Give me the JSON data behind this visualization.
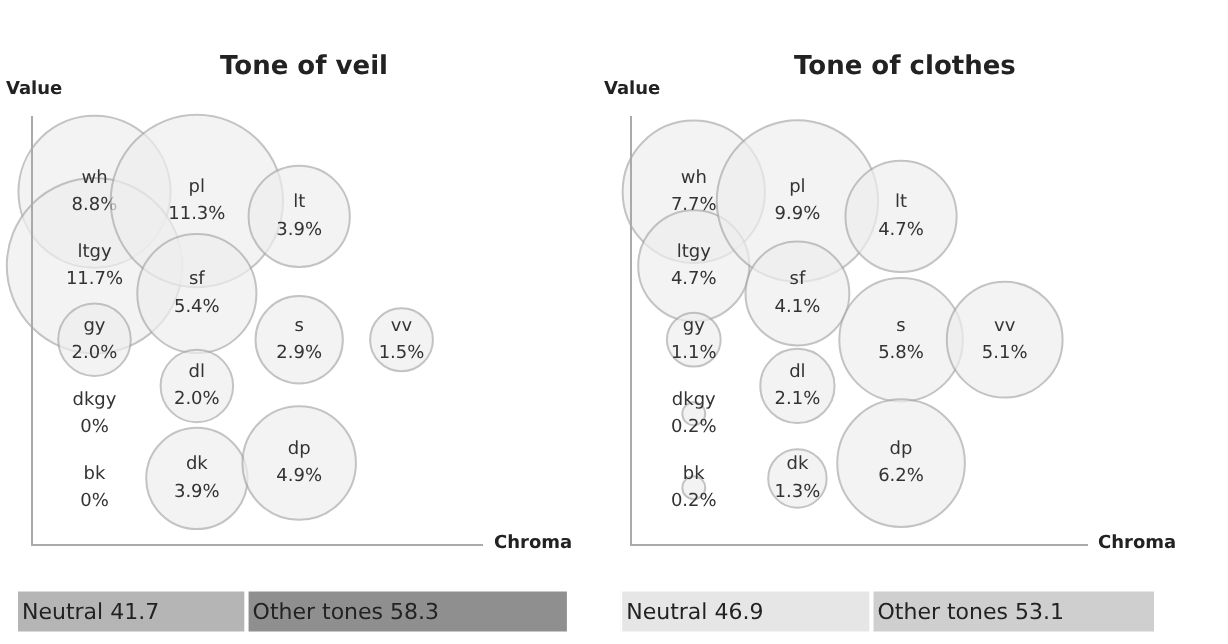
{
  "chart_data": [
    {
      "type": "other",
      "title": "Tone of veil",
      "xlabel": "Chroma",
      "ylabel": "Value",
      "categories": [
        "wh",
        "ltgy",
        "gy",
        "dkgy",
        "bk",
        "pl",
        "sf",
        "dl",
        "dk",
        "lt",
        "s",
        "dp",
        "vv"
      ],
      "series": [
        {
          "color": "#eeeeee",
          "values": [
            8.8,
            11.7,
            2.0,
            0,
            0,
            null,
            null,
            null,
            null,
            null,
            null,
            null,
            null
          ],
          "value_labels": [
            "8.8%",
            "11.7%",
            "2.0%",
            "0%",
            "0%",
            null,
            null,
            null,
            null,
            null,
            null,
            null,
            null
          ]
        },
        {
          "color": "#eeeeee",
          "values": [
            null,
            null,
            null,
            null,
            null,
            11.3,
            5.4,
            2.0,
            3.9,
            null,
            null,
            null,
            null
          ],
          "value_labels": [
            null,
            null,
            null,
            null,
            null,
            "11.3%",
            "5.4%",
            "2.0%",
            "3.9%",
            null,
            null,
            null,
            null
          ]
        },
        {
          "color": "#eeeeee",
          "values": [
            null,
            null,
            null,
            null,
            null,
            null,
            null,
            null,
            null,
            3.9,
            2.9,
            4.9,
            null
          ],
          "value_labels": [
            null,
            null,
            null,
            null,
            null,
            null,
            null,
            null,
            null,
            "3.9%",
            "2.9%",
            "4.9%",
            null
          ]
        },
        {
          "color": "#eeeeee",
          "values": [
            null,
            null,
            null,
            null,
            null,
            null,
            null,
            null,
            null,
            null,
            null,
            null,
            1.5
          ],
          "value_labels": [
            null,
            null,
            null,
            null,
            null,
            null,
            null,
            null,
            null,
            null,
            null,
            null,
            "1.5%"
          ]
        }
      ]
    },
    {
      "type": "other",
      "title": "Tone of clothes",
      "xlabel": "Chroma",
      "ylabel": "Value",
      "categories": [
        "wh",
        "ltgy",
        "gy",
        "dkgy",
        "bk",
        "pl",
        "sf",
        "dl",
        "dk",
        "lt",
        "s",
        "dp",
        "vv"
      ],
      "series": [
        {
          "color": "#eeeeee",
          "values": [
            7.7,
            4.7,
            1.1,
            0.2,
            0.2,
            null,
            null,
            null,
            null,
            null,
            null,
            null,
            null
          ],
          "value_labels": [
            "7.7%",
            "4.7%",
            "1.1%",
            "0.2%",
            "0.2%",
            null,
            null,
            null,
            null,
            null,
            null,
            null,
            null
          ]
        },
        {
          "color": "#eeeeee",
          "values": [
            null,
            null,
            null,
            null,
            null,
            9.9,
            4.1,
            2.1,
            1.3,
            null,
            null,
            null,
            null
          ],
          "value_labels": [
            null,
            null,
            null,
            null,
            null,
            "9.9%",
            "4.1%",
            "2.1%",
            "1.3%",
            null,
            null,
            null,
            null
          ]
        },
        {
          "color": "#eeeeee",
          "values": [
            null,
            null,
            null,
            null,
            null,
            null,
            null,
            null,
            null,
            4.7,
            5.8,
            6.2,
            null
          ],
          "value_labels": [
            null,
            null,
            null,
            null,
            null,
            null,
            null,
            null,
            null,
            "4.7%",
            "5.8%",
            "6.2%",
            null
          ]
        },
        {
          "color": "#eeeeee",
          "values": [
            null,
            null,
            null,
            null,
            null,
            null,
            null,
            null,
            null,
            null,
            null,
            null,
            5.1
          ],
          "value_labels": [
            null,
            null,
            null,
            null,
            null,
            null,
            null,
            null,
            null,
            null,
            null,
            null,
            "5.1%"
          ]
        }
      ]
    },
    {
      "type": "bar",
      "orientation": "horizontal",
      "stacked": true,
      "categories": [
        null
      ],
      "xlim": [
        0,
        100
      ],
      "tick_labels": false,
      "series": [
        {
          "color": "#b5b5b5",
          "values": [
            41.7
          ],
          "value_labels": [
            "Neutral 41.7"
          ]
        },
        {
          "color": "#8f8f8f",
          "values": [
            58.3
          ],
          "value_labels": [
            "Other tones 58.3"
          ]
        }
      ]
    },
    {
      "type": "bar",
      "orientation": "horizontal",
      "stacked": true,
      "categories": [
        null
      ],
      "xlim": [
        0,
        100
      ],
      "tick_labels": false,
      "series": [
        {
          "color": "#e6e6e6",
          "values": [
            46.9
          ],
          "value_labels": [
            "Neutral 46.9"
          ]
        },
        {
          "color": "#cfcfcf",
          "values": [
            53.1
          ],
          "value_labels": [
            "Other tones 53.1"
          ]
        }
      ]
    }
  ]
}
